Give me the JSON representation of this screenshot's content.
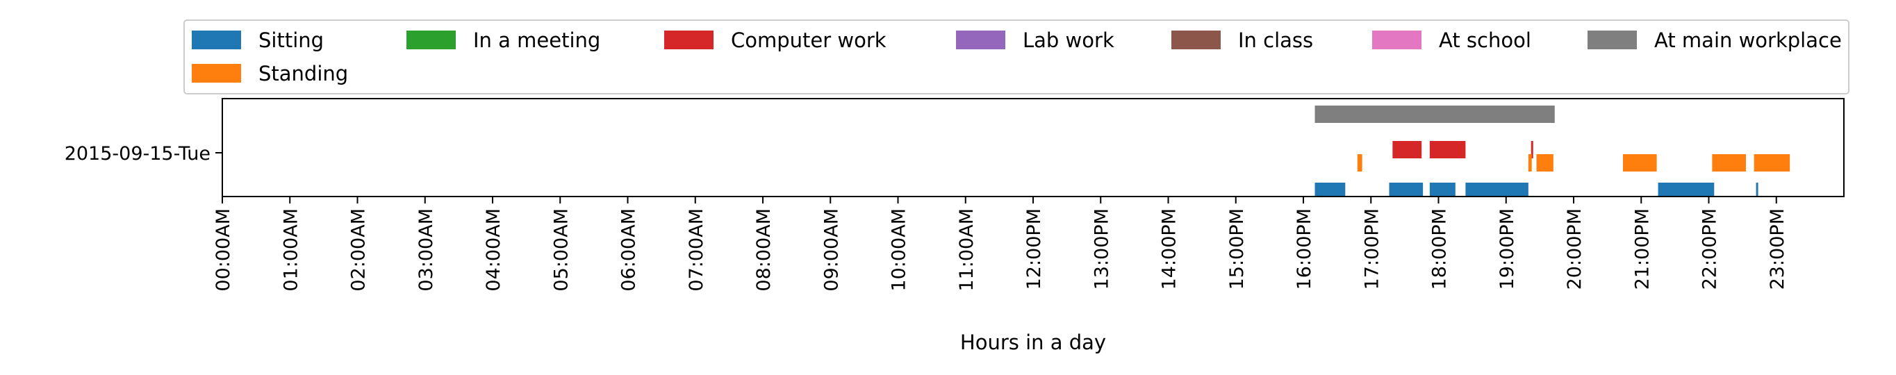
{
  "chart_data": {
    "type": "timeline",
    "xlabel": "Hours in a day",
    "xlim": [
      0,
      24
    ],
    "x_ticks": [
      "00:00AM",
      "01:00AM",
      "02:00AM",
      "03:00AM",
      "04:00AM",
      "05:00AM",
      "06:00AM",
      "07:00AM",
      "08:00AM",
      "09:00AM",
      "10:00AM",
      "11:00AM",
      "12:00PM",
      "13:00PM",
      "14:00PM",
      "15:00PM",
      "16:00PM",
      "17:00PM",
      "18:00PM",
      "19:00PM",
      "20:00PM",
      "21:00PM",
      "22:00PM",
      "23:00PM"
    ],
    "y_category": "2015-09-15-Tue",
    "grid": false,
    "legend_position": "top",
    "legend": [
      {
        "name": "Sitting",
        "color": "#1f77b4"
      },
      {
        "name": "In a meeting",
        "color": "#2ca02c"
      },
      {
        "name": "Computer work",
        "color": "#d62728"
      },
      {
        "name": "Lab work",
        "color": "#9467bd"
      },
      {
        "name": "In class",
        "color": "#8c564b"
      },
      {
        "name": "At school",
        "color": "#e377c2"
      },
      {
        "name": "At main workplace",
        "color": "#7f7f7f"
      },
      {
        "name": "Standing",
        "color": "#ff7f0e"
      }
    ],
    "series": [
      {
        "name": "At main workplace",
        "color": "#7f7f7f",
        "lane": 4,
        "intervals": [
          [
            16.17,
            19.72
          ]
        ]
      },
      {
        "name": "Computer work",
        "color": "#d62728",
        "lane": 3,
        "intervals": [
          [
            17.32,
            17.75
          ],
          [
            17.87,
            18.4
          ],
          [
            19.37,
            19.4
          ]
        ]
      },
      {
        "name": "Sitting",
        "color": "#1f77b4",
        "lane": 1,
        "intervals": [
          [
            16.17,
            16.62
          ],
          [
            17.27,
            17.77
          ],
          [
            17.87,
            18.25
          ],
          [
            18.4,
            19.33
          ],
          [
            21.25,
            22.08
          ],
          [
            22.7,
            22.73
          ]
        ]
      },
      {
        "name": "Standing",
        "color": "#ff7f0e",
        "lane": 2,
        "intervals": [
          [
            16.8,
            16.87
          ],
          [
            19.33,
            19.38
          ],
          [
            19.45,
            19.7
          ],
          [
            20.73,
            21.23
          ],
          [
            22.05,
            22.55
          ],
          [
            22.67,
            23.2
          ]
        ]
      }
    ]
  }
}
